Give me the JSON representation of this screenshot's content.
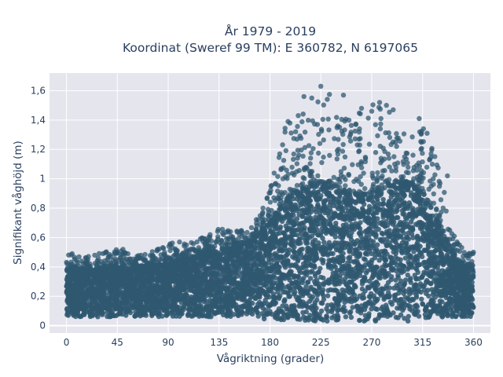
{
  "chart_data": {
    "type": "scatter",
    "title_line1": "År 1979 - 2019",
    "title_line2": "Koordinat (Sweref 99 TM): E 360782, N 6197065",
    "xlabel": "Vågriktning (grader)",
    "ylabel": "Signifikant våghöjd (m)",
    "xlim": [
      -15,
      375
    ],
    "ylim": [
      -0.05,
      1.72
    ],
    "x_ticks": [
      0,
      45,
      90,
      135,
      180,
      225,
      270,
      315,
      360
    ],
    "x_tick_labels": [
      "0",
      "45",
      "90",
      "135",
      "180",
      "225",
      "270",
      "315",
      "360"
    ],
    "y_ticks": [
      0,
      0.2,
      0.4,
      0.6,
      0.8,
      1.0,
      1.2,
      1.4,
      1.6
    ],
    "y_tick_labels": [
      "0",
      "0,2",
      "0,4",
      "0,6",
      "0,8",
      "1",
      "1,2",
      "1,4",
      "1,6"
    ],
    "grid": true,
    "marker_color": "#2f5870",
    "plot_bg": "#e5e5ee",
    "envelope": {
      "x": [
        0,
        15,
        30,
        45,
        60,
        75,
        90,
        105,
        120,
        135,
        150,
        165,
        180,
        195,
        210,
        225,
        240,
        255,
        270,
        285,
        300,
        315,
        330,
        345,
        360
      ],
      "y_min": [
        0.06,
        0.06,
        0.06,
        0.06,
        0.06,
        0.06,
        0.06,
        0.06,
        0.06,
        0.06,
        0.06,
        0.05,
        0.04,
        0.03,
        0.03,
        0.03,
        0.03,
        0.03,
        0.03,
        0.03,
        0.03,
        0.04,
        0.05,
        0.06,
        0.06
      ],
      "y_dense_max": [
        0.38,
        0.38,
        0.39,
        0.39,
        0.4,
        0.4,
        0.42,
        0.44,
        0.47,
        0.5,
        0.53,
        0.58,
        0.7,
        0.86,
        0.94,
        0.96,
        0.92,
        0.88,
        0.9,
        0.95,
        0.98,
        0.9,
        0.7,
        0.42,
        0.38
      ],
      "y_outlier_max": [
        0.49,
        0.47,
        0.5,
        0.52,
        0.48,
        0.5,
        0.57,
        0.58,
        0.6,
        0.66,
        0.65,
        0.68,
        0.95,
        1.4,
        1.47,
        1.63,
        1.57,
        1.45,
        1.52,
        1.47,
        1.3,
        1.41,
        1.1,
        0.58,
        0.49
      ]
    },
    "notable_points": [
      {
        "x": 225,
        "y": 1.63
      },
      {
        "x": 245,
        "y": 1.57
      },
      {
        "x": 210,
        "y": 1.56
      },
      {
        "x": 217,
        "y": 1.55
      },
      {
        "x": 277,
        "y": 1.52
      },
      {
        "x": 283,
        "y": 1.5
      },
      {
        "x": 261,
        "y": 1.48
      },
      {
        "x": 289,
        "y": 1.47
      },
      {
        "x": 270,
        "y": 1.46
      },
      {
        "x": 205,
        "y": 1.43
      },
      {
        "x": 312,
        "y": 1.41
      },
      {
        "x": 196,
        "y": 1.39
      },
      {
        "x": 222,
        "y": 1.37
      },
      {
        "x": 256,
        "y": 1.37
      },
      {
        "x": 240,
        "y": 1.36
      },
      {
        "x": 319,
        "y": 1.31
      },
      {
        "x": 337,
        "y": 1.02
      },
      {
        "x": 339,
        "y": 0.65
      },
      {
        "x": 343,
        "y": 0.61
      },
      {
        "x": 145,
        "y": 0.64
      },
      {
        "x": 138,
        "y": 0.63
      },
      {
        "x": 127,
        "y": 0.62
      },
      {
        "x": 100,
        "y": 0.57
      },
      {
        "x": 92,
        "y": 0.55
      },
      {
        "x": 80,
        "y": 0.51
      },
      {
        "x": 50,
        "y": 0.52
      },
      {
        "x": 35,
        "y": 0.5
      },
      {
        "x": 25,
        "y": 0.48
      },
      {
        "x": 5,
        "y": 0.49
      },
      {
        "x": 360,
        "y": 0.5
      },
      {
        "x": 176,
        "y": 0.72
      }
    ]
  }
}
